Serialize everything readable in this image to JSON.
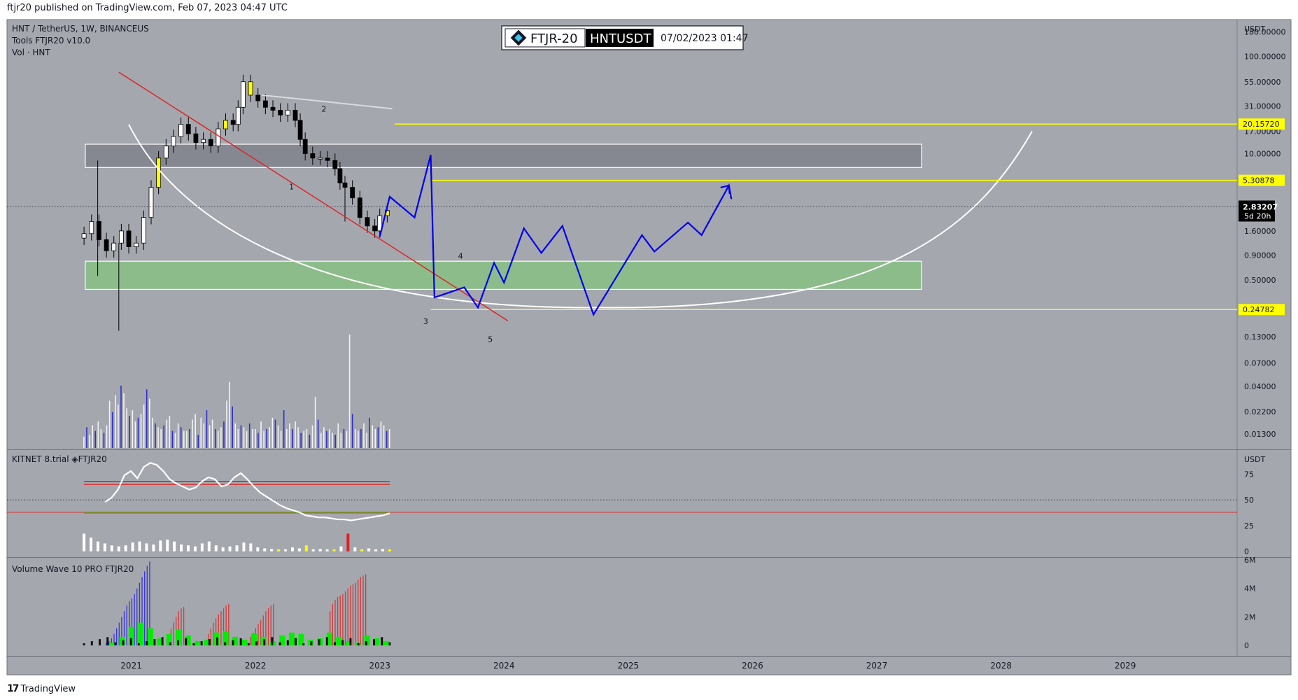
{
  "header": {
    "publish": "ftjr20 published on TradingView.com, Feb 07, 2023 04:47 UTC"
  },
  "footer": {
    "brand": "TradingView"
  },
  "legend": {
    "line1": "HNT / TetherUS, 1W, BINANCEUS",
    "line2": "Tools  FTJR20  v10.0",
    "line3": "Vol · HNT"
  },
  "badge": {
    "brand": "FTJR-20",
    "symbol": "HNTUSDT",
    "date": "07/02/2023 01:47"
  },
  "colors": {
    "panel": "#a4a7ae",
    "red": "#e0201f",
    "yellow": "#ffff00",
    "blue": "#0000ee",
    "green": "#00ee00"
  },
  "chart_data": [
    {
      "type": "candlestick",
      "title": "HNT / TetherUS, 1W, BINANCEUS",
      "currency_label": "USDT",
      "y_scale": "log",
      "y_ticks": [
        "180.00000",
        "100.00000",
        "55.00000",
        "31.00000",
        "17.00000",
        "10.00000",
        "5.30878",
        "2.83207",
        "1.60000",
        "0.90000",
        "0.50000",
        "0.24782",
        "0.13000",
        "0.07000",
        "0.04000",
        "0.02200",
        "0.01300"
      ],
      "ylim": [
        0.009,
        240
      ],
      "x_ticks": [
        "2021",
        "2022",
        "2023",
        "2024",
        "2025",
        "2026",
        "2027",
        "2028",
        "2029"
      ],
      "xlim": [
        2020.0,
        2029.9
      ],
      "price_labels": [
        {
          "value": 20.1572,
          "text": "20.15720"
        },
        {
          "value": 5.30878,
          "text": "5.30878"
        },
        {
          "value": 0.24782,
          "text": "0.24782"
        }
      ],
      "last_price": {
        "value": 2.83207,
        "text": "2.83207",
        "countdown": "5d 20h"
      },
      "price_path": [
        [
          2020.62,
          1.5
        ],
        [
          2020.68,
          2.0
        ],
        [
          2020.74,
          1.3
        ],
        [
          2020.8,
          1.0
        ],
        [
          2020.86,
          1.2
        ],
        [
          2020.92,
          1.6
        ],
        [
          2020.98,
          1.1
        ],
        [
          2021.04,
          1.2
        ],
        [
          2021.1,
          2.2
        ],
        [
          2021.16,
          4.5
        ],
        [
          2021.22,
          9
        ],
        [
          2021.28,
          12
        ],
        [
          2021.34,
          15
        ],
        [
          2021.4,
          20
        ],
        [
          2021.46,
          16
        ],
        [
          2021.52,
          13
        ],
        [
          2021.58,
          14
        ],
        [
          2021.64,
          12
        ],
        [
          2021.7,
          18
        ],
        [
          2021.76,
          22
        ],
        [
          2021.82,
          20
        ],
        [
          2021.86,
          30
        ],
        [
          2021.9,
          55
        ],
        [
          2021.96,
          40
        ],
        [
          2022.02,
          35
        ],
        [
          2022.08,
          30
        ],
        [
          2022.14,
          28
        ],
        [
          2022.2,
          25
        ],
        [
          2022.26,
          28
        ],
        [
          2022.32,
          22
        ],
        [
          2022.36,
          14
        ],
        [
          2022.4,
          10
        ],
        [
          2022.46,
          9
        ],
        [
          2022.52,
          9
        ],
        [
          2022.58,
          8.5
        ],
        [
          2022.64,
          7
        ],
        [
          2022.68,
          5
        ],
        [
          2022.72,
          4.5
        ],
        [
          2022.78,
          3.5
        ],
        [
          2022.84,
          2.2
        ],
        [
          2022.9,
          1.8
        ],
        [
          2022.96,
          1.6
        ],
        [
          2023.0,
          2.3
        ],
        [
          2023.06,
          2.6
        ]
      ],
      "volume_bars": [
        0.6,
        1.1,
        0.7,
        1.2,
        0.9,
        1.4,
        1.0,
        0.8,
        1.2,
        2.5,
        1.9,
        2.8,
        2.3,
        3.3,
        2.9,
        2.1,
        1.7,
        2.0,
        1.4,
        1.6,
        1.8,
        2.3,
        3.1,
        2.6,
        1.6,
        1.3,
        1.1,
        1.0,
        1.2,
        1.5,
        1.7,
        0.9,
        0.8,
        1.3,
        1.1,
        0.9,
        0.9,
        1.0,
        1.5,
        1.8,
        0.7,
        1.6,
        1.3,
        2.0,
        1.2,
        1.5,
        1.0,
        0.9,
        1.1,
        1.4,
        2.5,
        3.5,
        2.2,
        1.3,
        1.0,
        1.2,
        1.1,
        0.9,
        1.3,
        1.0,
        1.0,
        0.8,
        1.4,
        0.9,
        1.0,
        1.1,
        1.6,
        1.5,
        1.2,
        0.9,
        2.0,
        1.0,
        1.3,
        1.0,
        1.4,
        1.1,
        0.8,
        0.9,
        1.0,
        0.7,
        1.2,
        2.7,
        1.5,
        0.8,
        1.1,
        0.9,
        1.0,
        0.8,
        0.7,
        1.3,
        0.8,
        1.0,
        0.9,
        6.0,
        1.8,
        1.0,
        0.9,
        1.0,
        1.3,
        0.8,
        1.6,
        1.2,
        1.0,
        1.1,
        1.4,
        1.2,
        0.9,
        1.0
      ],
      "zones": [
        {
          "name": "resistance",
          "low": 7.2,
          "high": 12.5,
          "from": 2020.63,
          "to": 2027.36
        },
        {
          "name": "support",
          "low": 0.4,
          "high": 0.78,
          "from": 2020.63,
          "to": 2027.36
        }
      ],
      "lines": {
        "trendline": [
          [
            2020.9,
            69
          ],
          [
            2024.03,
            0.19
          ]
        ],
        "ma": [
          [
            2022.05,
            40
          ],
          [
            2022.5,
            35
          ],
          [
            2023.1,
            29
          ]
        ],
        "h_levels": [
          {
            "value": 20.1572,
            "from": 2023.12
          },
          {
            "value": 5.30878,
            "from": 2023.41
          },
          {
            "value": 0.24782,
            "from": 2023.41
          }
        ],
        "projection": [
          [
            2023.0,
            1.4
          ],
          [
            2023.08,
            3.6
          ],
          [
            2023.28,
            2.2
          ],
          [
            2023.41,
            9.7
          ],
          [
            2023.44,
            0.33
          ],
          [
            2023.68,
            0.42
          ],
          [
            2023.79,
            0.26
          ],
          [
            2023.92,
            0.75
          ],
          [
            2024.0,
            0.47
          ],
          [
            2024.16,
            1.7
          ],
          [
            2024.3,
            0.95
          ],
          [
            2024.47,
            1.8
          ],
          [
            2024.72,
            0.22
          ],
          [
            2025.11,
            1.45
          ],
          [
            2025.21,
            0.98
          ],
          [
            2025.48,
            1.95
          ],
          [
            2025.59,
            1.45
          ],
          [
            2025.81,
            4.7
          ],
          [
            2025.83,
            3.4
          ]
        ],
        "cup": {
          "left": [
            2020.98,
            20
          ],
          "bottom": [
            2024.78,
            0.26
          ],
          "right": [
            2028.25,
            17
          ]
        }
      },
      "wave_labels": [
        {
          "text": "1",
          "x": 2022.29,
          "y": 4.3
        },
        {
          "text": "2",
          "x": 2022.55,
          "y": 27
        },
        {
          "text": "3",
          "x": 2023.37,
          "y": 0.175
        },
        {
          "text": "4",
          "x": 2023.65,
          "y": 0.83
        },
        {
          "text": "5",
          "x": 2023.89,
          "y": 0.115
        }
      ]
    },
    {
      "type": "line",
      "title": "KITNET  8.trial  ◈FTJR20",
      "currency_label": "USDT",
      "y_ticks": [
        75,
        50,
        25,
        0
      ],
      "ylim": [
        -3,
        95
      ],
      "levels": {
        "upper_red": [
          68,
          65
        ],
        "dotted": 50,
        "red": 38,
        "green": 37
      },
      "line_values": [
        48,
        52,
        60,
        74,
        78,
        71,
        82,
        86,
        84,
        78,
        70,
        66,
        63,
        60,
        62,
        68,
        72,
        70,
        63,
        65,
        72,
        76,
        70,
        63,
        57,
        53,
        49,
        45,
        42,
        40,
        38,
        35,
        34,
        33,
        33,
        32,
        31,
        31,
        30,
        31,
        32,
        33,
        34,
        35,
        37
      ],
      "volume_hist": [
        0.9,
        0.7,
        0.5,
        0.4,
        0.3,
        0.25,
        0.3,
        0.45,
        0.5,
        0.4,
        0.35,
        0.55,
        0.6,
        0.5,
        0.35,
        0.3,
        0.25,
        0.4,
        0.5,
        0.3,
        0.2,
        0.25,
        0.3,
        0.45,
        0.4,
        0.2,
        0.15,
        0.12,
        0.1,
        0.1,
        0.2,
        0.15,
        0.3,
        0.1,
        0.12,
        0.1,
        0.1,
        0.25,
        0.9,
        0.2,
        0.1,
        0.15,
        0.1,
        0.12,
        0.1
      ]
    },
    {
      "type": "bar",
      "title": "Volume Wave 10 PRO FTJR20",
      "y_ticks": [
        "6M",
        "4M",
        "2M",
        "0"
      ],
      "ylim": [
        0,
        6
      ],
      "series": [
        {
          "name": "blue wave",
          "values": [
            0.2,
            0.3,
            0.5,
            0.8,
            1.2,
            1.6,
            2.0,
            2.4,
            2.8,
            3.1,
            3.3,
            3.6,
            4.0,
            4.4,
            4.8,
            5.2,
            5.6,
            5.9
          ]
        },
        {
          "name": "red wave 1",
          "values": [
            1.2,
            1.6,
            2.0,
            2.4,
            2.6,
            2.7
          ]
        },
        {
          "name": "red wave 2",
          "values": [
            0.8,
            1.2,
            1.6,
            1.9,
            2.2,
            2.4,
            2.6,
            2.8,
            2.9
          ]
        },
        {
          "name": "red wave 3",
          "values": [
            0.6,
            0.9,
            1.2,
            1.5,
            1.8,
            2.1,
            2.4,
            2.6,
            2.8,
            2.9
          ]
        },
        {
          "name": "red wave 4",
          "values": [
            2.4,
            2.9,
            3.2,
            3.4,
            3.5,
            3.6,
            3.8,
            4.0,
            4.2,
            4.3,
            4.4,
            4.6,
            4.8,
            4.9,
            5.0
          ]
        }
      ],
      "green_values": [
        0.2,
        0.6,
        1.3,
        1.6,
        1.2,
        0.5,
        0.8,
        1.1,
        0.7,
        0.3,
        0.4,
        0.9,
        1.0,
        0.6,
        0.4,
        0.8,
        0.6,
        0.3,
        0.7,
        0.9,
        0.8,
        0.4,
        0.5,
        0.9,
        0.6,
        0.3,
        0.2,
        0.7,
        0.5,
        0.3
      ]
    }
  ]
}
